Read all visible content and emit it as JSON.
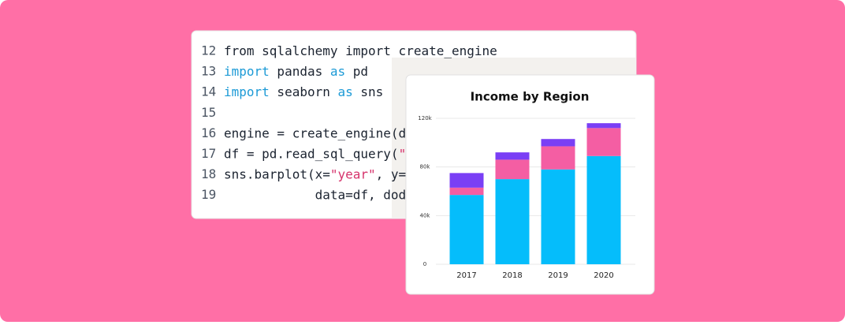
{
  "code": {
    "lines": [
      {
        "number": 12,
        "segments": [
          {
            "text": "from sqlalchemy import create_engine",
            "color": "#1b2330"
          }
        ]
      },
      {
        "number": 13,
        "segments": [
          {
            "text": "import",
            "color": "#1c9ad6"
          },
          {
            "text": " pandas ",
            "color": "#1b2330"
          },
          {
            "text": "as",
            "color": "#1c9ad6"
          },
          {
            "text": " pd",
            "color": "#1b2330"
          }
        ]
      },
      {
        "number": 14,
        "segments": [
          {
            "text": "import",
            "color": "#1c9ad6"
          },
          {
            "text": " seaborn ",
            "color": "#1b2330"
          },
          {
            "text": "as",
            "color": "#1c9ad6"
          },
          {
            "text": " sns",
            "color": "#1b2330"
          }
        ]
      },
      {
        "number": 15,
        "segments": []
      },
      {
        "number": 16,
        "segments": [
          {
            "text": "engine = create_engine(d",
            "color": "#1b2330"
          }
        ]
      },
      {
        "number": 17,
        "segments": [
          {
            "text": "df = pd.read_sql_query(",
            "color": "#1b2330"
          },
          {
            "text": "\"",
            "color": "#d6336c"
          }
        ]
      },
      {
        "number": 18,
        "segments": [
          {
            "text": "sns.barplot(x=",
            "color": "#1b2330"
          },
          {
            "text": "\"year\"",
            "color": "#d6336c"
          },
          {
            "text": ", y=",
            "color": "#1b2330"
          }
        ]
      },
      {
        "number": 19,
        "segments": [
          {
            "text": "            data=df, dod",
            "color": "#1b2330"
          }
        ]
      }
    ]
  },
  "chart_data": {
    "type": "bar",
    "stacked": true,
    "title": "Income by Region",
    "categories": [
      "2017",
      "2018",
      "2019",
      "2020"
    ],
    "series": [
      {
        "color": "#05bdfb",
        "values": [
          57000,
          70000,
          78000,
          89000
        ]
      },
      {
        "color": "#f45ea3",
        "values": [
          6000,
          16000,
          19000,
          23000
        ]
      },
      {
        "color": "#7a3ff5",
        "values": [
          12000,
          6000,
          6000,
          4000
        ]
      }
    ],
    "ylim": [
      0,
      120000
    ],
    "yticks": [
      0,
      {
        "value": 40000,
        "label": "40k"
      },
      {
        "value": 80000,
        "label": "80k"
      },
      {
        "value": 120000,
        "label": "120k"
      }
    ],
    "grid": true
  }
}
